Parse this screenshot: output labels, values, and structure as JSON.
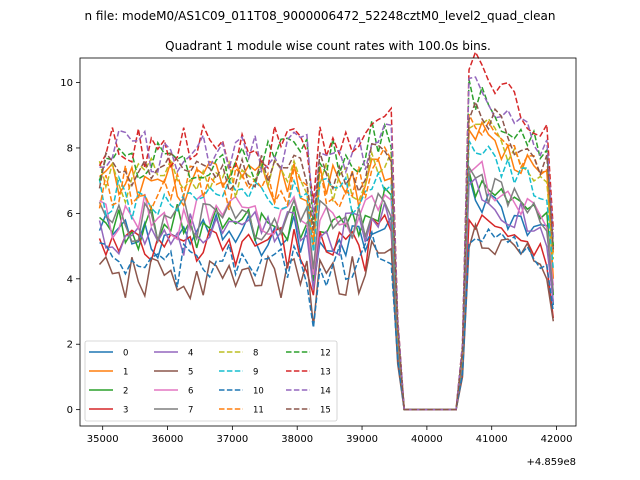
{
  "chart_data": {
    "type": "line",
    "suptitle": "n file: modeM0/AS1C09_011T08_9000006472_52248cztM0_level2_quad_clean",
    "title": "Quadrant 1 module wise count rates with 100.0s bins.",
    "xlabel": "",
    "ylabel": "",
    "x_offset_label": "+4.859e8",
    "xlim": [
      34650,
      42300
    ],
    "ylim": [
      -0.5,
      10.75
    ],
    "xticks": [
      35000,
      36000,
      37000,
      38000,
      39000,
      40000,
      41000,
      42000
    ],
    "xtick_labels": [
      "35000",
      "36000",
      "37000",
      "38000",
      "39000",
      "40000",
      "41000",
      "42000"
    ],
    "yticks": [
      0,
      2,
      4,
      6,
      8,
      10
    ],
    "ytick_labels": [
      "0",
      "2",
      "4",
      "6",
      "8",
      "10"
    ],
    "grid": false,
    "legend_placement": "lower-left",
    "legend_columns": 4,
    "bin_seconds": 100,
    "x_start": 34950,
    "gap_start": 39650,
    "gap_end": 40450,
    "x_end": 41950,
    "series": [
      {
        "name": "0",
        "color": "#1f77b4",
        "dash": "solid",
        "base": 5.3,
        "post_base": 6.0,
        "post_end": 3.2
      },
      {
        "name": "1",
        "color": "#ff7f0e",
        "dash": "solid",
        "base": 6.9,
        "post_base": 7.8,
        "post_end": 4.0
      },
      {
        "name": "2",
        "color": "#2ca02c",
        "dash": "solid",
        "base": 5.6,
        "post_base": 6.3,
        "post_end": 3.5
      },
      {
        "name": "3",
        "color": "#d62728",
        "dash": "solid",
        "base": 4.9,
        "post_base": 5.5,
        "post_end": 2.8
      },
      {
        "name": "4",
        "color": "#9467bd",
        "dash": "solid",
        "base": 5.4,
        "post_base": 6.1,
        "post_end": 3.3
      },
      {
        "name": "5",
        "color": "#8c564b",
        "dash": "solid",
        "base": 4.0,
        "post_base": 4.9,
        "post_end": 2.7
      },
      {
        "name": "6",
        "color": "#e377c2",
        "dash": "solid",
        "base": 5.9,
        "post_base": 6.6,
        "post_end": 3.8
      },
      {
        "name": "7",
        "color": "#7f7f7f",
        "dash": "solid",
        "base": 5.8,
        "post_base": 6.4,
        "post_end": 3.6
      },
      {
        "name": "8",
        "color": "#bcbd22",
        "dash": "dashed",
        "base": 7.0,
        "post_base": 8.0,
        "post_end": 4.6
      },
      {
        "name": "9",
        "color": "#17becf",
        "dash": "dashed",
        "base": 6.4,
        "post_base": 7.3,
        "post_end": 4.3
      },
      {
        "name": "10",
        "color": "#1f77b4",
        "dash": "dashed",
        "base": 4.4,
        "post_base": 5.0,
        "post_end": 3.0
      },
      {
        "name": "11",
        "color": "#ff7f0e",
        "dash": "dashed",
        "base": 6.8,
        "post_base": 8.2,
        "post_end": 4.8
      },
      {
        "name": "12",
        "color": "#2ca02c",
        "dash": "dashed",
        "base": 7.6,
        "post_base": 8.8,
        "post_end": 5.0
      },
      {
        "name": "13",
        "color": "#d62728",
        "dash": "dashed",
        "base": 8.0,
        "post_base": 9.6,
        "post_end": 5.5
      },
      {
        "name": "14",
        "color": "#9467bd",
        "dash": "dashed",
        "base": 7.9,
        "post_base": 9.0,
        "post_end": 5.2
      },
      {
        "name": "15",
        "color": "#8c564b",
        "dash": "dashed",
        "base": 7.2,
        "post_base": 8.4,
        "post_end": 4.9
      }
    ]
  }
}
